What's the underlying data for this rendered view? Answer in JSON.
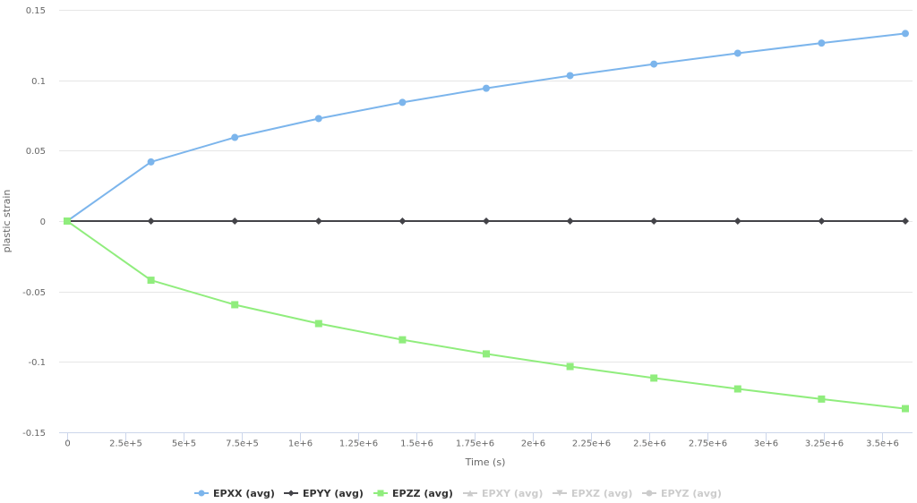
{
  "chart_data": {
    "type": "line",
    "title": "",
    "xlabel": "Time (s)",
    "ylabel": "plastic strain",
    "xlim": [
      -34615,
      3630800
    ],
    "ylim": [
      -0.15,
      0.15
    ],
    "grid": true,
    "legend_position": "bottom",
    "x_ticks": [
      0,
      250000,
      500000,
      750000,
      1000000,
      1250000,
      1500000,
      1750000,
      2000000,
      2250000,
      2500000,
      2750000,
      3000000,
      3250000,
      3500000
    ],
    "x_tick_labels": [
      "0",
      "2.5e+5",
      "5e+5",
      "7.5e+5",
      "1e+6",
      "1.25e+6",
      "1.5e+6",
      "1.75e+6",
      "2e+6",
      "2.25e+6",
      "2.5e+6",
      "2.75e+6",
      "3e+6",
      "3.25e+6",
      "3.5e+6"
    ],
    "y_ticks": [
      0.15,
      0.1,
      0.05,
      0,
      -0.05,
      -0.1,
      -0.15
    ],
    "y_tick_labels": [
      "0.15",
      "0.1",
      "0.05",
      "0",
      "-0.05",
      "-0.1",
      "-0.15"
    ],
    "x": [
      0,
      360000,
      720000,
      1080000,
      1440000,
      1800000,
      2160000,
      2520000,
      2880000,
      3240000,
      3600000
    ],
    "series": [
      {
        "name": "EPXX (avg)",
        "color": "#7cb5ec",
        "marker": "circle",
        "visible": true,
        "values": [
          0,
          0.042,
          0.0594,
          0.0728,
          0.0843,
          0.0943,
          0.1033,
          0.1115,
          0.1192,
          0.1264,
          0.1332
        ]
      },
      {
        "name": "EPYY (avg)",
        "color": "#434348",
        "marker": "diamond",
        "visible": true,
        "values": [
          0,
          0,
          0,
          0,
          0,
          0,
          0,
          0,
          0,
          0,
          0
        ]
      },
      {
        "name": "EPZZ (avg)",
        "color": "#90ed7d",
        "marker": "square",
        "visible": true,
        "values": [
          0,
          -0.042,
          -0.0594,
          -0.0728,
          -0.0843,
          -0.0943,
          -0.1033,
          -0.1115,
          -0.1192,
          -0.1264,
          -0.1332
        ]
      },
      {
        "name": "EPXY (avg)",
        "color": "#f7a35c",
        "marker": "triangle",
        "visible": false,
        "values": []
      },
      {
        "name": "EPXZ (avg)",
        "color": "#8085e9",
        "marker": "triangle-down",
        "visible": false,
        "values": []
      },
      {
        "name": "EPYZ (avg)",
        "color": "#f15c80",
        "marker": "circle",
        "visible": false,
        "values": []
      }
    ]
  },
  "style": {
    "grid_color": "#e6e6e6",
    "axis_line_color": "#ccd6eb",
    "hidden_legend_color": "#cccccc",
    "legend_text_color": "#333333"
  }
}
